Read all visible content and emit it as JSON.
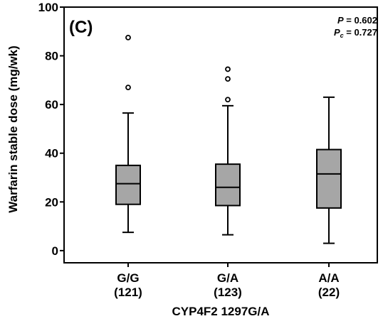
{
  "chart_data": {
    "type": "box",
    "panel_label": "(C)",
    "xlabel": "CYP4F2 1297G/A",
    "ylabel": "Warfarin stable dose  (mg/wk)",
    "ylim": [
      -5,
      100
    ],
    "yticks": [
      0,
      20,
      40,
      60,
      80,
      100
    ],
    "categories": [
      {
        "label": "G/G",
        "n": "(121)"
      },
      {
        "label": "G/A",
        "n": "(123)"
      },
      {
        "label": "A/A",
        "n": "(22)"
      }
    ],
    "boxes": [
      {
        "whisker_low": 7.5,
        "q1": 19,
        "median": 27.5,
        "q3": 35,
        "whisker_high": 56.5,
        "outliers": [
          67,
          87.5
        ]
      },
      {
        "whisker_low": 6.5,
        "q1": 18.5,
        "median": 26,
        "q3": 35.5,
        "whisker_high": 59.5,
        "outliers": [
          62,
          70.5,
          74.5
        ]
      },
      {
        "whisker_low": 3,
        "q1": 17.5,
        "median": 31.5,
        "q3": 41.5,
        "whisker_high": 63,
        "outliers": []
      }
    ],
    "annotations": {
      "p_label": "P",
      "p_value": " = 0.602",
      "pc_label": "P",
      "pc_sub": "c",
      "pc_value": " = 0.727"
    },
    "colors": {
      "box_fill": "#a6a6a6",
      "line": "#000000"
    }
  }
}
